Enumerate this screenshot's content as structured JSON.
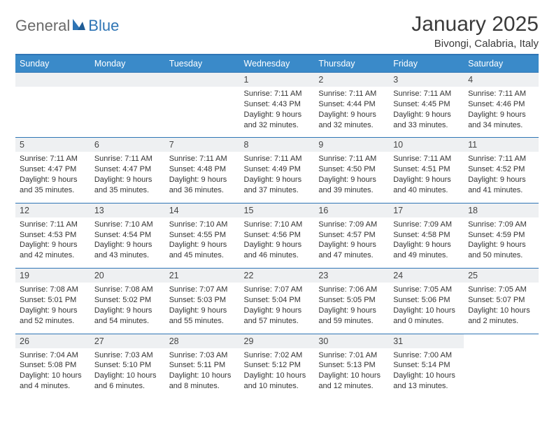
{
  "logo": {
    "text1": "General",
    "text2": "Blue"
  },
  "title": "January 2025",
  "location": "Bivongi, Calabria, Italy",
  "colors": {
    "header_bg": "#3a8ac9",
    "header_text": "#ffffff",
    "accent_line": "#2f75b5",
    "daynum_bg": "#eef0f2",
    "body_text": "#333333",
    "title_text": "#3a3a3a",
    "logo_gray": "#6a6a6a",
    "logo_blue": "#2f75b5"
  },
  "weekdays": [
    "Sunday",
    "Monday",
    "Tuesday",
    "Wednesday",
    "Thursday",
    "Friday",
    "Saturday"
  ],
  "weeks": [
    {
      "nums": [
        "",
        "",
        "",
        "1",
        "2",
        "3",
        "4"
      ],
      "cells": [
        "",
        "",
        "",
        "Sunrise: 7:11 AM\nSunset: 4:43 PM\nDaylight: 9 hours\nand 32 minutes.",
        "Sunrise: 7:11 AM\nSunset: 4:44 PM\nDaylight: 9 hours\nand 32 minutes.",
        "Sunrise: 7:11 AM\nSunset: 4:45 PM\nDaylight: 9 hours\nand 33 minutes.",
        "Sunrise: 7:11 AM\nSunset: 4:46 PM\nDaylight: 9 hours\nand 34 minutes."
      ]
    },
    {
      "nums": [
        "5",
        "6",
        "7",
        "8",
        "9",
        "10",
        "11"
      ],
      "cells": [
        "Sunrise: 7:11 AM\nSunset: 4:47 PM\nDaylight: 9 hours\nand 35 minutes.",
        "Sunrise: 7:11 AM\nSunset: 4:47 PM\nDaylight: 9 hours\nand 35 minutes.",
        "Sunrise: 7:11 AM\nSunset: 4:48 PM\nDaylight: 9 hours\nand 36 minutes.",
        "Sunrise: 7:11 AM\nSunset: 4:49 PM\nDaylight: 9 hours\nand 37 minutes.",
        "Sunrise: 7:11 AM\nSunset: 4:50 PM\nDaylight: 9 hours\nand 39 minutes.",
        "Sunrise: 7:11 AM\nSunset: 4:51 PM\nDaylight: 9 hours\nand 40 minutes.",
        "Sunrise: 7:11 AM\nSunset: 4:52 PM\nDaylight: 9 hours\nand 41 minutes."
      ]
    },
    {
      "nums": [
        "12",
        "13",
        "14",
        "15",
        "16",
        "17",
        "18"
      ],
      "cells": [
        "Sunrise: 7:11 AM\nSunset: 4:53 PM\nDaylight: 9 hours\nand 42 minutes.",
        "Sunrise: 7:10 AM\nSunset: 4:54 PM\nDaylight: 9 hours\nand 43 minutes.",
        "Sunrise: 7:10 AM\nSunset: 4:55 PM\nDaylight: 9 hours\nand 45 minutes.",
        "Sunrise: 7:10 AM\nSunset: 4:56 PM\nDaylight: 9 hours\nand 46 minutes.",
        "Sunrise: 7:09 AM\nSunset: 4:57 PM\nDaylight: 9 hours\nand 47 minutes.",
        "Sunrise: 7:09 AM\nSunset: 4:58 PM\nDaylight: 9 hours\nand 49 minutes.",
        "Sunrise: 7:09 AM\nSunset: 4:59 PM\nDaylight: 9 hours\nand 50 minutes."
      ]
    },
    {
      "nums": [
        "19",
        "20",
        "21",
        "22",
        "23",
        "24",
        "25"
      ],
      "cells": [
        "Sunrise: 7:08 AM\nSunset: 5:01 PM\nDaylight: 9 hours\nand 52 minutes.",
        "Sunrise: 7:08 AM\nSunset: 5:02 PM\nDaylight: 9 hours\nand 54 minutes.",
        "Sunrise: 7:07 AM\nSunset: 5:03 PM\nDaylight: 9 hours\nand 55 minutes.",
        "Sunrise: 7:07 AM\nSunset: 5:04 PM\nDaylight: 9 hours\nand 57 minutes.",
        "Sunrise: 7:06 AM\nSunset: 5:05 PM\nDaylight: 9 hours\nand 59 minutes.",
        "Sunrise: 7:05 AM\nSunset: 5:06 PM\nDaylight: 10 hours\nand 0 minutes.",
        "Sunrise: 7:05 AM\nSunset: 5:07 PM\nDaylight: 10 hours\nand 2 minutes."
      ]
    },
    {
      "nums": [
        "26",
        "27",
        "28",
        "29",
        "30",
        "31",
        ""
      ],
      "cells": [
        "Sunrise: 7:04 AM\nSunset: 5:08 PM\nDaylight: 10 hours\nand 4 minutes.",
        "Sunrise: 7:03 AM\nSunset: 5:10 PM\nDaylight: 10 hours\nand 6 minutes.",
        "Sunrise: 7:03 AM\nSunset: 5:11 PM\nDaylight: 10 hours\nand 8 minutes.",
        "Sunrise: 7:02 AM\nSunset: 5:12 PM\nDaylight: 10 hours\nand 10 minutes.",
        "Sunrise: 7:01 AM\nSunset: 5:13 PM\nDaylight: 10 hours\nand 12 minutes.",
        "Sunrise: 7:00 AM\nSunset: 5:14 PM\nDaylight: 10 hours\nand 13 minutes.",
        ""
      ]
    }
  ]
}
